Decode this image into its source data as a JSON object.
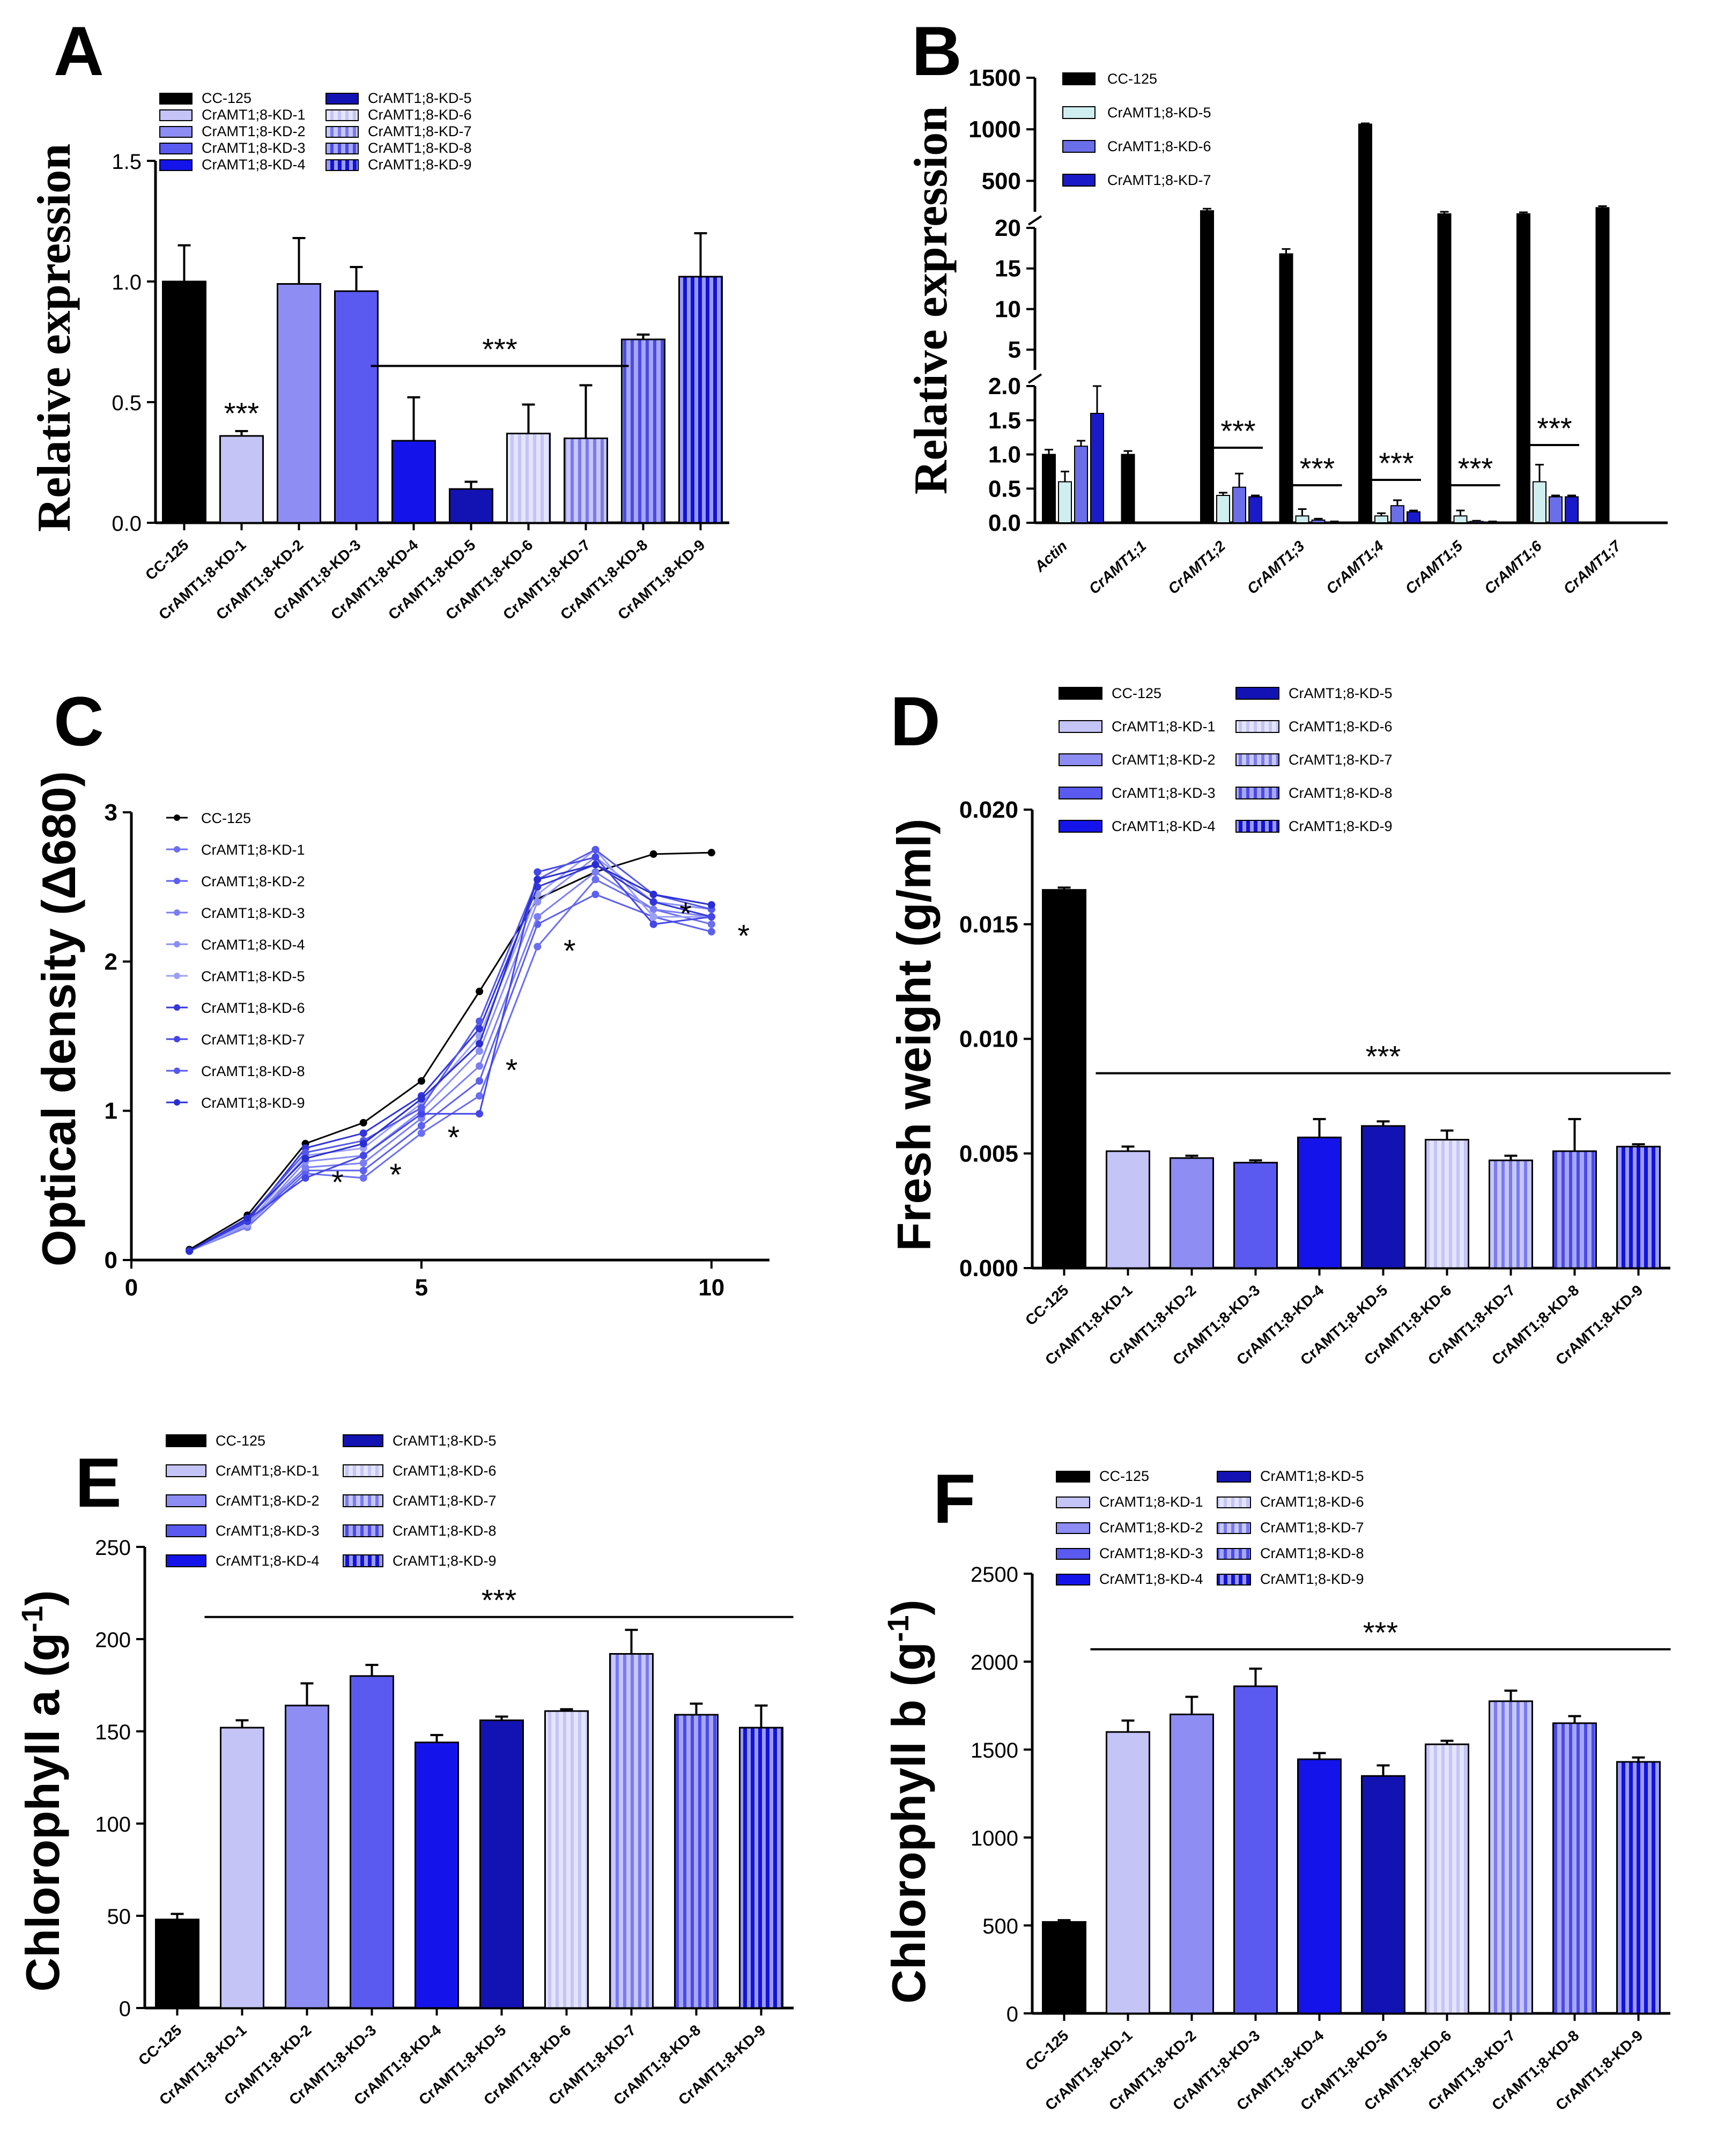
{
  "figure": {
    "colors": {
      "cc125": "#000000",
      "kd": [
        "#c4c4f7",
        "#8d8df3",
        "#5a5af0",
        "#1414ea",
        "#1313b4",
        "#c4c4f7",
        "#8d8df3",
        "#5a5af0",
        "#1b1be0"
      ],
      "line": [
        "#000000",
        "#6a6ef0",
        "#5c60ee",
        "#7a7ef2",
        "#8a8ef4",
        "#9a9ef5",
        "#3336d8",
        "#4446e6",
        "#5558ea",
        "#2a2ed0"
      ]
    }
  },
  "chart_data": [
    {
      "panel": "A",
      "type": "bar",
      "ylabel": "Relative expression",
      "ylim": [
        0,
        1.5
      ],
      "yticks": [
        "0.0",
        "0.5",
        "1.0",
        "1.5"
      ],
      "categories": [
        "CC-125",
        "CrAMT1;8-KD-1",
        "CrAMT1;8-KD-2",
        "CrAMT1;8-KD-3",
        "CrAMT1;8-KD-4",
        "CrAMT1;8-KD-5",
        "CrAMT1;8-KD-6",
        "CrAMT1;8-KD-7",
        "CrAMT1;8-KD-8",
        "CrAMT1;8-KD-9"
      ],
      "values": [
        1.0,
        0.36,
        0.99,
        0.96,
        0.34,
        0.14,
        0.37,
        0.35,
        0.76,
        1.02
      ],
      "errors": [
        0.15,
        0.02,
        0.19,
        0.1,
        0.18,
        0.03,
        0.12,
        0.22,
        0.02,
        0.18
      ],
      "legend": [
        "CC-125",
        "CrAMT1;8-KD-1",
        "CrAMT1;8-KD-2",
        "CrAMT1;8-KD-3",
        "CrAMT1;8-KD-4",
        "CrAMT1;8-KD-5",
        "CrAMT1;8-KD-6",
        "CrAMT1;8-KD-7",
        "CrAMT1;8-KD-8",
        "CrAMT1;8-KD-9"
      ],
      "significance": [
        {
          "label": "***",
          "over": "CrAMT1;8-KD-1"
        },
        {
          "label": "***",
          "from": "CrAMT1;8-KD-4",
          "to": "CrAMT1;8-KD-7"
        }
      ]
    },
    {
      "panel": "B",
      "type": "bar",
      "ylabel": "Relative expression",
      "axis_segments": [
        {
          "range": [
            0,
            2.0
          ],
          "ticks": [
            "0.0",
            "0.5",
            "1.0",
            "1.5",
            "2.0"
          ]
        },
        {
          "range": [
            2.5,
            20
          ],
          "ticks": [
            "5",
            "10",
            "15",
            "20"
          ]
        },
        {
          "range": [
            200,
            1500
          ],
          "ticks": [
            "500",
            "1000",
            "1500"
          ]
        }
      ],
      "categories": [
        "Actin",
        "CrAMT1;1",
        "CrAMT1;2",
        "CrAMT1;3",
        "CrAMT1;4",
        "CrAMT1;5",
        "CrAMT1;6",
        "CrAMT1;7"
      ],
      "series": [
        {
          "name": "CC-125",
          "values": [
            1.0,
            1.0,
            210,
            16.8,
            1050,
            180,
            180,
            240
          ],
          "errors": [
            0.07,
            0.05,
            20,
            0.6,
            8,
            20,
            15,
            15
          ]
        },
        {
          "name": "CrAMT1;8-KD-5",
          "values": [
            0.6,
            0,
            0.4,
            0.1,
            0.1,
            0.1,
            0.6,
            0
          ],
          "errors": [
            0.15,
            0,
            0.04,
            0.1,
            0.04,
            0.08,
            0.25,
            0
          ]
        },
        {
          "name": "CrAMT1;8-KD-6",
          "values": [
            1.12,
            0,
            0.52,
            0.04,
            0.25,
            0.02,
            0.38,
            0
          ],
          "errors": [
            0.08,
            0,
            0.2,
            0.02,
            0.08,
            0.01,
            0.02,
            0
          ]
        },
        {
          "name": "CrAMT1;8-KD-7",
          "values": [
            1.6,
            0,
            0.38,
            0.01,
            0.16,
            0.01,
            0.38,
            0
          ],
          "errors": [
            0.4,
            0,
            0.02,
            0.01,
            0.02,
            0.01,
            0.02,
            0
          ]
        }
      ],
      "significance": [
        "***",
        "***",
        "***",
        "***",
        "***"
      ]
    },
    {
      "panel": "C",
      "type": "line",
      "ylabel": "Optical density (Δ680)",
      "xlim": [
        0,
        11
      ],
      "ylim": [
        0,
        3
      ],
      "xticks": [
        "0",
        "5",
        "10"
      ],
      "yticks": [
        "0",
        "1",
        "2",
        "3"
      ],
      "x": [
        1,
        2,
        3,
        4,
        5,
        6,
        7,
        8,
        9,
        10
      ],
      "series": [
        {
          "name": "CC-125",
          "values": [
            0.07,
            0.3,
            0.78,
            0.92,
            1.2,
            1.8,
            2.42,
            2.6,
            2.72,
            2.73
          ]
        },
        {
          "name": "CrAMT1;8-KD-1",
          "values": [
            0.06,
            0.22,
            0.58,
            0.55,
            0.85,
            1.1,
            2.1,
            2.55,
            2.35,
            2.25
          ]
        },
        {
          "name": "CrAMT1;8-KD-2",
          "values": [
            0.06,
            0.24,
            0.6,
            0.6,
            0.9,
            1.2,
            2.25,
            2.45,
            2.3,
            2.2
          ]
        },
        {
          "name": "CrAMT1;8-KD-3",
          "values": [
            0.06,
            0.25,
            0.62,
            0.65,
            0.95,
            1.3,
            2.3,
            2.6,
            2.35,
            2.3
          ]
        },
        {
          "name": "CrAMT1;8-KD-4",
          "values": [
            0.06,
            0.23,
            0.66,
            0.7,
            1.0,
            1.4,
            2.4,
            2.7,
            2.4,
            2.35
          ]
        },
        {
          "name": "CrAMT1;8-KD-5",
          "values": [
            0.06,
            0.24,
            0.7,
            0.75,
            1.05,
            1.5,
            2.45,
            2.75,
            2.3,
            2.3
          ]
        },
        {
          "name": "CrAMT1;8-KD-6",
          "values": [
            0.06,
            0.26,
            0.75,
            0.85,
            1.1,
            1.55,
            2.5,
            2.65,
            2.4,
            2.3
          ]
        },
        {
          "name": "CrAMT1;8-KD-7",
          "values": [
            0.06,
            0.27,
            0.55,
            0.7,
            0.98,
            0.98,
            2.6,
            2.7,
            2.25,
            2.3
          ]
        },
        {
          "name": "CrAMT1;8-KD-8",
          "values": [
            0.06,
            0.28,
            0.72,
            0.8,
            1.02,
            1.6,
            2.55,
            2.75,
            2.45,
            2.35
          ]
        },
        {
          "name": "CrAMT1;8-KD-9",
          "values": [
            0.06,
            0.28,
            0.68,
            0.78,
            1.08,
            1.45,
            2.55,
            2.65,
            2.45,
            2.38
          ]
        }
      ],
      "annotations": [
        {
          "label": "*",
          "x": 3
        },
        {
          "label": "*",
          "x": 4
        },
        {
          "label": "*",
          "x": 5
        },
        {
          "label": "*",
          "x": 6
        },
        {
          "label": "*",
          "x": 7
        },
        {
          "label": "*",
          "x": 9
        },
        {
          "label": "*",
          "x": 10
        }
      ]
    },
    {
      "panel": "D",
      "type": "bar",
      "ylabel": "Fresh weight (g/ml)",
      "ylim": [
        0,
        0.02
      ],
      "yticks": [
        "0.000",
        "0.005",
        "0.010",
        "0.015",
        "0.020"
      ],
      "categories": [
        "CC-125",
        "CrAMT1;8-KD-1",
        "CrAMT1;8-KD-2",
        "CrAMT1;8-KD-3",
        "CrAMT1;8-KD-4",
        "CrAMT1;8-KD-5",
        "CrAMT1;8-KD-6",
        "CrAMT1;8-KD-7",
        "CrAMT1;8-KD-8",
        "CrAMT1;8-KD-9"
      ],
      "values": [
        0.0165,
        0.0051,
        0.0048,
        0.0046,
        0.0057,
        0.0062,
        0.0056,
        0.0047,
        0.0051,
        0.0053
      ],
      "errors": [
        0.0001,
        0.0002,
        0.0001,
        0.0001,
        0.0008,
        0.0002,
        0.0004,
        0.0002,
        0.0014,
        0.0001
      ],
      "legend": [
        "CC-125",
        "CrAMT1;8-KD-1",
        "CrAMT1;8-KD-2",
        "CrAMT1;8-KD-3",
        "CrAMT1;8-KD-4",
        "CrAMT1;8-KD-5",
        "CrAMT1;8-KD-6",
        "CrAMT1;8-KD-7",
        "CrAMT1;8-KD-8",
        "CrAMT1;8-KD-9"
      ],
      "significance": [
        {
          "label": "***",
          "from": "CrAMT1;8-KD-1",
          "to": "CrAMT1;8-KD-9"
        }
      ]
    },
    {
      "panel": "E",
      "type": "bar",
      "ylabel": "Chlorophyll a (g-1)",
      "ylim": [
        0,
        250
      ],
      "yticks": [
        "0",
        "50",
        "100",
        "150",
        "200",
        "250"
      ],
      "categories": [
        "CC-125",
        "CrAMT1;8-KD-1",
        "CrAMT1;8-KD-2",
        "CrAMT1;8-KD-3",
        "CrAMT1;8-KD-4",
        "CrAMT1;8-KD-5",
        "CrAMT1;8-KD-6",
        "CrAMT1;8-KD-7",
        "CrAMT1;8-KD-8",
        "CrAMT1;8-KD-9"
      ],
      "values": [
        48,
        152,
        164,
        180,
        144,
        156,
        161,
        192,
        159,
        152
      ],
      "errors": [
        3,
        4,
        12,
        6,
        4,
        2,
        1,
        13,
        6,
        12
      ],
      "legend": [
        "CC-125",
        "CrAMT1;8-KD-1",
        "CrAMT1;8-KD-2",
        "CrAMT1;8-KD-3",
        "CrAMT1;8-KD-4",
        "CrAMT1;8-KD-5",
        "CrAMT1;8-KD-6",
        "CrAMT1;8-KD-7",
        "CrAMT1;8-KD-8",
        "CrAMT1;8-KD-9"
      ],
      "significance": [
        {
          "label": "***",
          "from": "CrAMT1;8-KD-1",
          "to": "CrAMT1;8-KD-9"
        }
      ]
    },
    {
      "panel": "F",
      "type": "bar",
      "ylabel": "Chlorophyll b (g-1)",
      "ylim": [
        0,
        2500
      ],
      "yticks": [
        "0",
        "500",
        "1000",
        "1500",
        "2000",
        "2500"
      ],
      "categories": [
        "CC-125",
        "CrAMT1;8-KD-1",
        "CrAMT1;8-KD-2",
        "CrAMT1;8-KD-3",
        "CrAMT1;8-KD-4",
        "CrAMT1;8-KD-5",
        "CrAMT1;8-KD-6",
        "CrAMT1;8-KD-7",
        "CrAMT1;8-KD-8",
        "CrAMT1;8-KD-9"
      ],
      "values": [
        520,
        1600,
        1700,
        1860,
        1445,
        1350,
        1530,
        1775,
        1650,
        1430
      ],
      "errors": [
        10,
        65,
        100,
        100,
        35,
        60,
        20,
        60,
        40,
        25
      ],
      "legend": [
        "CC-125",
        "CrAMT1;8-KD-1",
        "CrAMT1;8-KD-2",
        "CrAMT1;8-KD-3",
        "CrAMT1;8-KD-4",
        "CrAMT1;8-KD-5",
        "CrAMT1;8-KD-6",
        "CrAMT1;8-KD-7",
        "CrAMT1;8-KD-8",
        "CrAMT1;8-KD-9"
      ],
      "significance": [
        {
          "label": "***",
          "from": "CrAMT1;8-KD-1",
          "to": "CrAMT1;8-KD-9"
        }
      ]
    }
  ]
}
